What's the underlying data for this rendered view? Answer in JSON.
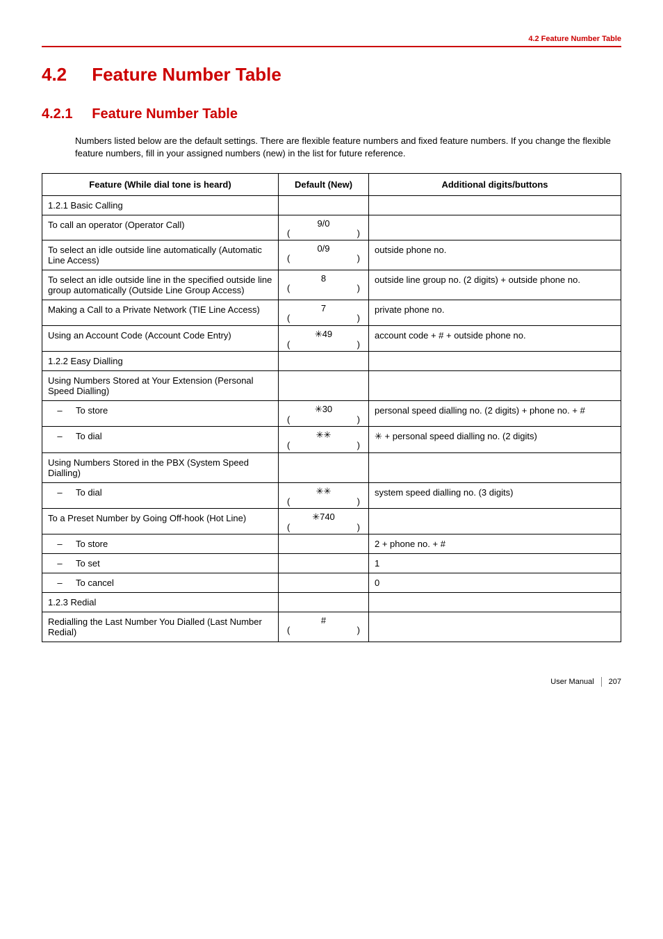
{
  "header": {
    "section_label": "4.2 Feature Number Table"
  },
  "titles": {
    "h1_num": "4.2",
    "h1_text": "Feature Number Table",
    "h2_num": "4.2.1",
    "h2_text": "Feature Number Table"
  },
  "intro": "Numbers listed below are the default settings. There are flexible feature numbers and fixed feature numbers. If you change the flexible feature numbers, fill in your assigned numbers (new) in the list for future reference.",
  "table": {
    "headers": {
      "feature": "Feature (While dial tone is heard)",
      "default": "Default (New)",
      "additional": "Additional digits/buttons"
    },
    "sections": [
      {
        "label": "1.2.1 Basic Calling",
        "rows": [
          {
            "feature": "To call an operator (Operator Call)",
            "default": "9/0",
            "new_paren": true,
            "additional": ""
          },
          {
            "feature": "To select an idle outside line automatically (Automatic Line Access)",
            "default": "0/9",
            "new_paren": true,
            "additional": "outside phone no."
          },
          {
            "feature": "To select an idle outside line in the specified outside line group automatically (Outside Line Group Access)",
            "default": "8",
            "new_paren": true,
            "additional": "outside line group no. (2 digits) + outside phone no."
          },
          {
            "feature": "Making a Call to a Private Network (TIE Line Access)",
            "default": "7",
            "new_paren": true,
            "additional": "private phone no."
          },
          {
            "feature": "Using an Account Code (Account Code Entry)",
            "default": "✳︎49",
            "new_paren": true,
            "additional": "account code + # + outside phone no."
          }
        ]
      },
      {
        "label": "1.2.2 Easy Dialling",
        "rows": [
          {
            "feature": "Using Numbers Stored at Your Extension (Personal Speed Dialling)",
            "default": "",
            "new_paren": false,
            "additional": ""
          },
          {
            "feature_dash": true,
            "feature": "To store",
            "default": "✳︎30",
            "new_paren": true,
            "additional": "personal speed dialling no. (2 digits) + phone no. + #"
          },
          {
            "feature_dash": true,
            "feature": "To dial",
            "default": "✳︎✳︎",
            "new_paren": true,
            "additional": "✳︎ + personal speed dialling no. (2 digits)"
          },
          {
            "feature": "Using Numbers Stored in the PBX (System Speed Dialling)",
            "default": "",
            "new_paren": false,
            "additional": ""
          },
          {
            "feature_dash": true,
            "feature": "To dial",
            "default": "✳︎✳︎",
            "new_paren": true,
            "additional": "system speed dialling no. (3 digits)"
          },
          {
            "feature": "To a Preset Number by Going Off-hook (Hot Line)",
            "default": "✳︎740",
            "new_paren": true,
            "additional": ""
          },
          {
            "feature_dash": true,
            "feature": "To store",
            "default": "",
            "new_paren": false,
            "additional": "2 + phone no. + #"
          },
          {
            "feature_dash": true,
            "feature": "To set",
            "default": "",
            "new_paren": false,
            "additional": "1"
          },
          {
            "feature_dash": true,
            "feature": "To cancel",
            "default": "",
            "new_paren": false,
            "additional": "0"
          }
        ]
      },
      {
        "label": "1.2.3 Redial",
        "rows": [
          {
            "feature": "Redialling the Last Number You Dialled (Last Number Redial)",
            "default": "#",
            "new_paren": true,
            "additional": ""
          }
        ]
      }
    ]
  },
  "footer": {
    "manual": "User Manual",
    "page": "207"
  },
  "paren": {
    "open": "(",
    "close": ")"
  }
}
